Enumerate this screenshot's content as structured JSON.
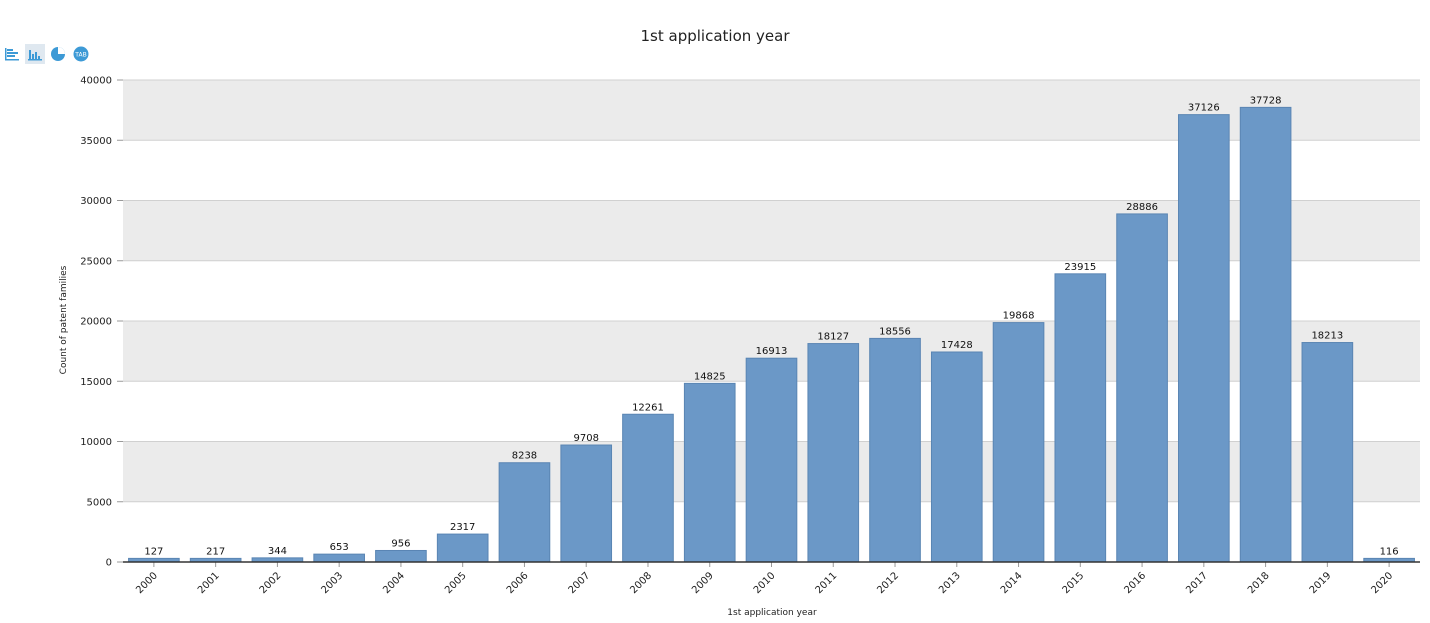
{
  "toolbar": {
    "icons": [
      "horizontal-bar-chart-icon",
      "vertical-bar-chart-icon",
      "pie-chart-icon",
      "table-view-icon"
    ],
    "table_icon_text": "TAB"
  },
  "colors": {
    "bar": "#6b98c7",
    "bar_stroke": "#5a85b3",
    "band": "#ebebeb",
    "grid": "#d0d0d0",
    "icon": "#3d9ad6"
  },
  "chart_data": {
    "type": "bar",
    "title": "1st application year",
    "xlabel": "1st application year",
    "ylabel": "Count of patent families",
    "ylim": [
      0,
      40000
    ],
    "yticks": [
      0,
      5000,
      10000,
      15000,
      20000,
      25000,
      30000,
      35000,
      40000
    ],
    "grid": "horizontal-bands",
    "categories": [
      "2000",
      "2001",
      "2002",
      "2003",
      "2004",
      "2005",
      "2006",
      "2007",
      "2008",
      "2009",
      "2010",
      "2011",
      "2012",
      "2013",
      "2014",
      "2015",
      "2016",
      "2017",
      "2018",
      "2019",
      "2020"
    ],
    "values": [
      127,
      217,
      344,
      653,
      956,
      2317,
      8238,
      9708,
      12261,
      14825,
      16913,
      18127,
      18556,
      17428,
      19868,
      23915,
      28886,
      37126,
      37728,
      18213,
      116
    ]
  }
}
